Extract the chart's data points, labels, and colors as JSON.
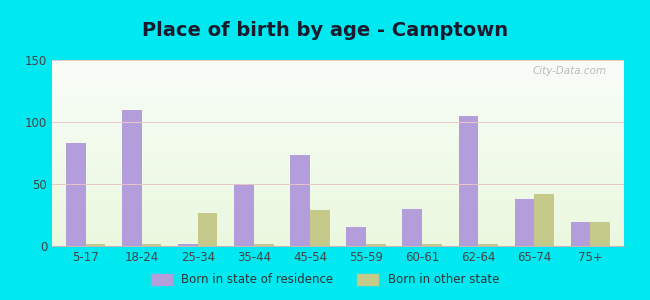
{
  "title": "Place of birth by age - Camptown",
  "categories": [
    "5-17",
    "18-24",
    "25-34",
    "35-44",
    "45-54",
    "55-59",
    "60-61",
    "62-64",
    "65-74",
    "75+"
  ],
  "born_in_state": [
    83,
    110,
    2,
    50,
    73,
    15,
    30,
    105,
    38,
    19
  ],
  "born_other_state": [
    2,
    2,
    27,
    2,
    29,
    2,
    2,
    2,
    42,
    19
  ],
  "color_state": "#b39ddb",
  "color_other": "#c5c98a",
  "ylim": [
    0,
    150
  ],
  "yticks": [
    0,
    50,
    100,
    150
  ],
  "background_outer": "#00e8f0",
  "legend_state_label": "Born in state of residence",
  "legend_other_label": "Born in other state",
  "title_fontsize": 14,
  "bar_width": 0.35,
  "watermark": "City-Data.com"
}
